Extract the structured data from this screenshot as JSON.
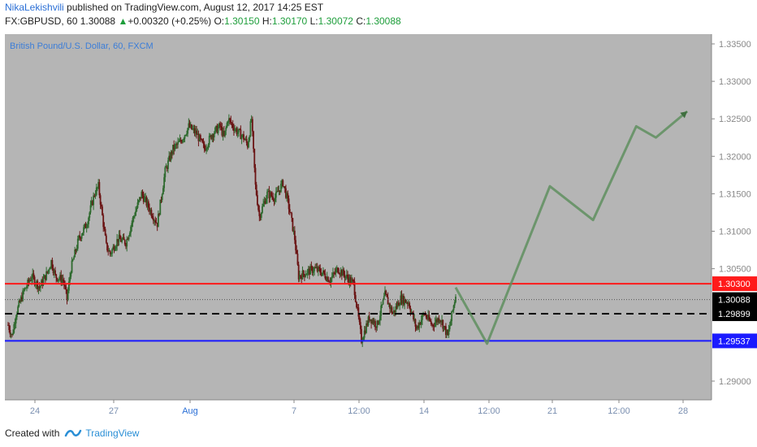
{
  "header": {
    "user": "NikaLekishvili",
    "published": "published on TradingView.com, August 12, 2017 14:25 EST",
    "symbol": "FX:GBPUSD, 60",
    "last": "1.30088",
    "change_arrow": "▲",
    "change": "+0.00320 (+0.25%)",
    "o_label": "O:",
    "o": "1.30150",
    "h_label": "H:",
    "h": "1.30170",
    "l_label": "L:",
    "l": "1.30072",
    "c_label": "C:",
    "c": "1.30088"
  },
  "footer": {
    "created_with": "Created with",
    "brand": "TradingView"
  },
  "colors": {
    "plot_bg": "#b5b5b5",
    "axis_bg": "#ffffff",
    "up_candle": "#2f6a2f",
    "down_candle": "#6b1515",
    "resistance": "#ff1a1a",
    "support": "#1a1aff",
    "projection": "#5f8f5f"
  },
  "chart_data": {
    "type": "candlestick",
    "title": "British Pound/U.S. Dollar, 60, FXCM",
    "ylim": [
      1.2875,
      1.3363
    ],
    "yticks": [
      "1.33500",
      "1.33000",
      "1.32500",
      "1.32000",
      "1.31500",
      "1.31000",
      "1.30500",
      "1.29000"
    ],
    "xticks": [
      "24",
      "27",
      "Aug",
      "7",
      "12:00",
      "14",
      "12:00",
      "21",
      "12:00",
      "28"
    ],
    "price_path": [
      [
        0,
        1.2975
      ],
      [
        0.5,
        1.296
      ],
      [
        1,
        1.299
      ],
      [
        1.5,
        1.3005
      ],
      [
        2,
        1.302
      ],
      [
        3,
        1.304
      ],
      [
        4,
        1.3025
      ],
      [
        5,
        1.3045
      ],
      [
        5.5,
        1.306
      ],
      [
        6,
        1.304
      ],
      [
        7,
        1.3035
      ],
      [
        7.5,
        1.301
      ],
      [
        8,
        1.305
      ],
      [
        9,
        1.309
      ],
      [
        10,
        1.311
      ],
      [
        11,
        1.315
      ],
      [
        11.5,
        1.316
      ],
      [
        12,
        1.312
      ],
      [
        12.5,
        1.308
      ],
      [
        13,
        1.307
      ],
      [
        14,
        1.309
      ],
      [
        15,
        1.3085
      ],
      [
        16,
        1.312
      ],
      [
        17,
        1.315
      ],
      [
        18,
        1.313
      ],
      [
        19,
        1.311
      ],
      [
        20,
        1.318
      ],
      [
        21,
        1.321
      ],
      [
        22,
        1.322
      ],
      [
        23,
        1.324
      ],
      [
        24,
        1.323
      ],
      [
        25,
        1.321
      ],
      [
        26,
        1.323
      ],
      [
        27,
        1.324
      ],
      [
        27.5,
        1.3225
      ],
      [
        28,
        1.325
      ],
      [
        29,
        1.3235
      ],
      [
        30,
        1.3225
      ],
      [
        30.5,
        1.3215
      ],
      [
        31,
        1.325
      ],
      [
        31.5,
        1.316
      ],
      [
        32,
        1.312
      ],
      [
        33,
        1.315
      ],
      [
        34,
        1.3145
      ],
      [
        35,
        1.3165
      ],
      [
        35.5,
        1.3145
      ],
      [
        36,
        1.312
      ],
      [
        36.5,
        1.309
      ],
      [
        37,
        1.304
      ],
      [
        38,
        1.3045
      ],
      [
        39,
        1.305
      ],
      [
        40,
        1.3045
      ],
      [
        41,
        1.3035
      ],
      [
        42,
        1.305
      ],
      [
        43,
        1.304
      ],
      [
        44,
        1.303
      ],
      [
        45,
        1.2955
      ],
      [
        46,
        1.2985
      ],
      [
        47,
        1.2975
      ],
      [
        48,
        1.3015
      ],
      [
        49,
        1.299
      ],
      [
        50,
        1.301
      ],
      [
        51,
        1.3005
      ],
      [
        52,
        1.297
      ],
      [
        53,
        1.299
      ],
      [
        54,
        1.2975
      ],
      [
        55,
        1.2985
      ],
      [
        56,
        1.296
      ],
      [
        57,
        1.3015
      ]
    ],
    "projection": [
      [
        57,
        1.3025
      ],
      [
        61,
        1.295
      ],
      [
        69,
        1.316
      ],
      [
        74.5,
        1.3115
      ],
      [
        80,
        1.324
      ],
      [
        82.5,
        1.3225
      ],
      [
        86.5,
        1.326
      ]
    ],
    "levels": [
      {
        "label": "1.30300",
        "value": 1.303,
        "color": "#ff1a1a",
        "style": "solid"
      },
      {
        "label": "1.30088",
        "value": 1.30088,
        "color": "#555555",
        "style": "dotted"
      },
      {
        "label": "1.29899",
        "value": 1.29899,
        "color": "#000000",
        "style": "dashed"
      },
      {
        "label": "1.29537",
        "value": 1.29537,
        "color": "#1a1aff",
        "style": "solid"
      }
    ]
  }
}
